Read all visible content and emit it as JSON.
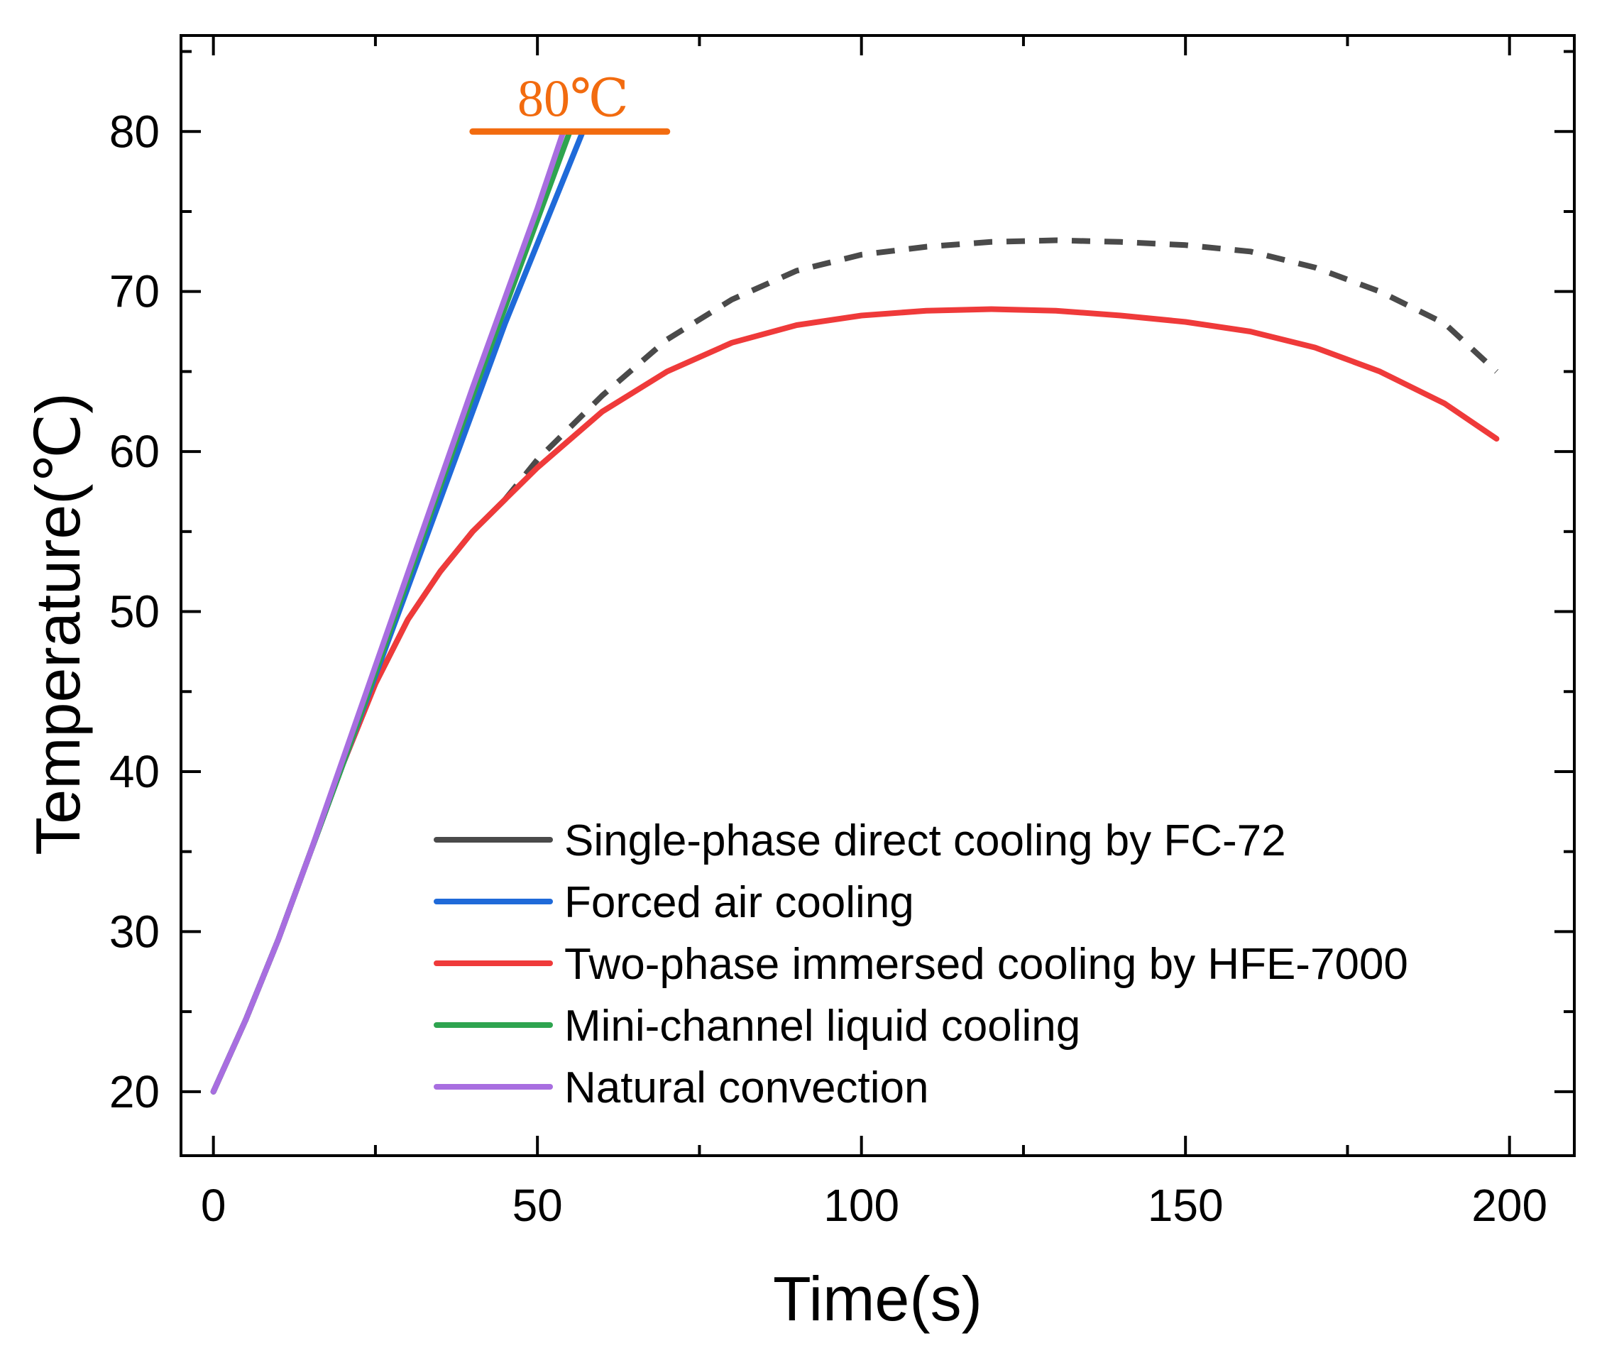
{
  "chart_data": {
    "type": "line",
    "title": "",
    "xlabel": "Time(s)",
    "ylabel": "Temperature(℃)",
    "xlim": [
      -5,
      210
    ],
    "ylim": [
      16,
      86
    ],
    "xticks": [
      0,
      50,
      100,
      150,
      200
    ],
    "yticks": [
      20,
      30,
      40,
      50,
      60,
      70,
      80
    ],
    "x_minor_step": 25,
    "y_minor_step": 5,
    "grid": false,
    "legend_position": "bottom-right",
    "series": [
      {
        "name": "Single-phase direct cooling by FC-72",
        "color": "#4a4a4a",
        "style": "solid",
        "x": [
          0,
          5,
          10,
          15,
          20,
          25,
          30,
          35,
          40,
          45
        ],
        "y": [
          20,
          24.5,
          29.5,
          35,
          40.5,
          45.5,
          49.5,
          52.5,
          55,
          57
        ]
      },
      {
        "name": "Single-phase direct cooling by FC-72 (extrapolated)",
        "legend": false,
        "color": "#4a4a4a",
        "style": "dashed",
        "x": [
          45,
          50,
          60,
          70,
          80,
          90,
          100,
          110,
          120,
          130,
          140,
          150,
          160,
          170,
          180,
          190,
          198
        ],
        "y": [
          57,
          59.5,
          63.5,
          67,
          69.5,
          71.3,
          72.3,
          72.8,
          73.1,
          73.2,
          73.1,
          72.9,
          72.5,
          71.5,
          70,
          68,
          65
        ]
      },
      {
        "name": "Forced air cooling",
        "color": "#1f6ad9",
        "style": "solid",
        "x": [
          0,
          5,
          10,
          15,
          20,
          25,
          30,
          35,
          40,
          45,
          50,
          57
        ],
        "y": [
          20,
          24.5,
          29.5,
          35,
          40.5,
          46,
          51.5,
          57,
          62.5,
          68,
          73,
          80
        ]
      },
      {
        "name": "Two-phase immersed cooling by HFE-7000",
        "color": "#ef3a3a",
        "style": "solid",
        "x": [
          0,
          5,
          10,
          15,
          20,
          25,
          30,
          35,
          40,
          45,
          50,
          60,
          70,
          80,
          90,
          100,
          110,
          120,
          130,
          140,
          150,
          160,
          170,
          180,
          190,
          198
        ],
        "y": [
          20,
          24.5,
          29.5,
          35,
          40.5,
          45.5,
          49.5,
          52.5,
          55,
          57,
          59,
          62.5,
          65,
          66.8,
          67.9,
          68.5,
          68.8,
          68.9,
          68.8,
          68.5,
          68.1,
          67.5,
          66.5,
          65,
          63,
          60.8
        ]
      },
      {
        "name": "Mini-channel liquid cooling",
        "color": "#2ea44f",
        "style": "solid",
        "x": [
          0,
          5,
          10,
          15,
          20,
          25,
          30,
          35,
          40,
          45,
          50,
          55
        ],
        "y": [
          20,
          24.5,
          29.5,
          35,
          40.5,
          46.2,
          52,
          57.8,
          63.5,
          69,
          74.5,
          80
        ]
      },
      {
        "name": "Natural convection",
        "color": "#a86ee0",
        "style": "solid",
        "x": [
          0,
          5,
          10,
          15,
          20,
          25,
          30,
          35,
          40,
          45,
          50,
          54
        ],
        "y": [
          20,
          24.5,
          29.5,
          35,
          40.8,
          46.6,
          52.4,
          58.2,
          64,
          69.6,
          75.2,
          80
        ]
      }
    ],
    "annotations": [
      {
        "text": "80℃",
        "color": "#f26b0f",
        "x": 55.5,
        "y": 80,
        "bar": {
          "x0": 40,
          "x1": 70,
          "y": 80
        }
      }
    ]
  }
}
